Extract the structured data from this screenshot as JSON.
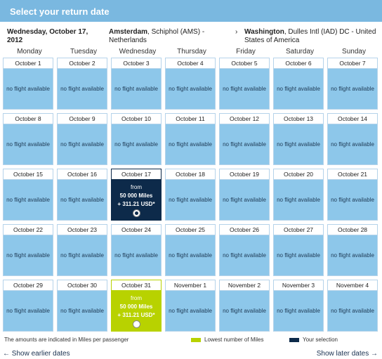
{
  "header": {
    "title": "Select your return date"
  },
  "flight_info": {
    "date": "Wednesday, October 17, 2012",
    "origin_city": "Amsterdam",
    "origin_rest": ", Schiphol (AMS) - Netherlands",
    "destination_city": "Washington",
    "destination_rest": ", Dulles Intl (IAD) DC - United States of America",
    "arrow": "›"
  },
  "weekdays": [
    "Monday",
    "Tuesday",
    "Wednesday",
    "Thursday",
    "Friday",
    "Saturday",
    "Sunday"
  ],
  "calendar": {
    "no_flight_text": "no flight available",
    "weeks": [
      [
        {
          "date": "October 1"
        },
        {
          "date": "October 2"
        },
        {
          "date": "October 3"
        },
        {
          "date": "October 4"
        },
        {
          "date": "October 5"
        },
        {
          "date": "October 6"
        },
        {
          "date": "October 7"
        }
      ],
      [
        {
          "date": "October 8"
        },
        {
          "date": "October 9"
        },
        {
          "date": "October 10"
        },
        {
          "date": "October 11"
        },
        {
          "date": "October 12"
        },
        {
          "date": "October 13"
        },
        {
          "date": "October 14"
        }
      ],
      [
        {
          "date": "October 15"
        },
        {
          "date": "October 16"
        },
        {
          "date": "October 17",
          "status": "selected",
          "from": "from",
          "miles": "50 000 Miles",
          "price": "+ 311.21 USD*"
        },
        {
          "date": "October 18"
        },
        {
          "date": "October 19"
        },
        {
          "date": "October 20"
        },
        {
          "date": "October 21"
        }
      ],
      [
        {
          "date": "October 22"
        },
        {
          "date": "October 23"
        },
        {
          "date": "October 24"
        },
        {
          "date": "October 25"
        },
        {
          "date": "October 26"
        },
        {
          "date": "October 27"
        },
        {
          "date": "October 28"
        }
      ],
      [
        {
          "date": "October 29"
        },
        {
          "date": "October 30"
        },
        {
          "date": "October 31",
          "status": "lowest",
          "from": "from",
          "miles": "50 000 Miles",
          "price": "+ 311.21 USD*"
        },
        {
          "date": "November 1"
        },
        {
          "date": "November 2"
        },
        {
          "date": "November 3"
        },
        {
          "date": "November 4"
        }
      ]
    ]
  },
  "footer": {
    "note": "The amounts are indicated in Miles per passenger",
    "legend_lowest": "Lowest number of Miles",
    "legend_selection": "Your selection",
    "prev_link": "Show earlier dates",
    "next_link": "Show later dates",
    "prev_arrow": "←",
    "next_arrow": "→"
  },
  "colors": {
    "header_bg": "#7ab8e0",
    "cell_bg": "#8dc7ea",
    "selected_bg": "#0d2a4a",
    "lowest_bg": "#b8d200"
  }
}
